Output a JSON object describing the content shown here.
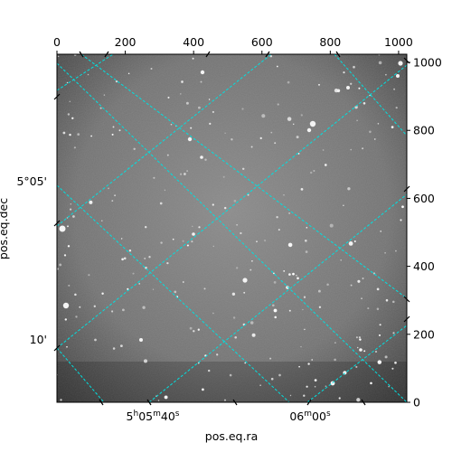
{
  "chart_data": {
    "type": "image",
    "xlabel": "pos.eq.ra",
    "ylabel": "pos.eq.dec",
    "pixel_axes": {
      "x": {
        "range": [
          0,
          1024
        ],
        "ticks": [
          0,
          200,
          400,
          600,
          800,
          1000
        ],
        "labels": [
          "0",
          "200",
          "400",
          "600",
          "800",
          "1000"
        ],
        "position": "top"
      },
      "y": {
        "range": [
          0,
          1024
        ],
        "ticks": [
          0,
          200,
          400,
          600,
          800,
          1000
        ],
        "labels": [
          "0",
          "200",
          "400",
          "600",
          "800",
          "1000"
        ],
        "position": "right"
      }
    },
    "world_axes": {
      "ra": {
        "ticks": [
          {
            "label_prefix": "5",
            "label_h": "h",
            "label_mid": "05",
            "label_m": "m",
            "label_sec": "40",
            "label_s": "s",
            "px": 275
          },
          {
            "label_prefix": "06",
            "label_m": "m",
            "label_sec": "00",
            "label_s": "s",
            "px": 740
          }
        ],
        "position": "bottom"
      },
      "dec": {
        "ticks": [
          {
            "label": "5°05'",
            "py": 648
          },
          {
            "label": "10'",
            "py": 186
          }
        ],
        "position": "left"
      }
    },
    "grid": true,
    "grid_color": "#00e0e0",
    "colormap": "grayscale"
  }
}
